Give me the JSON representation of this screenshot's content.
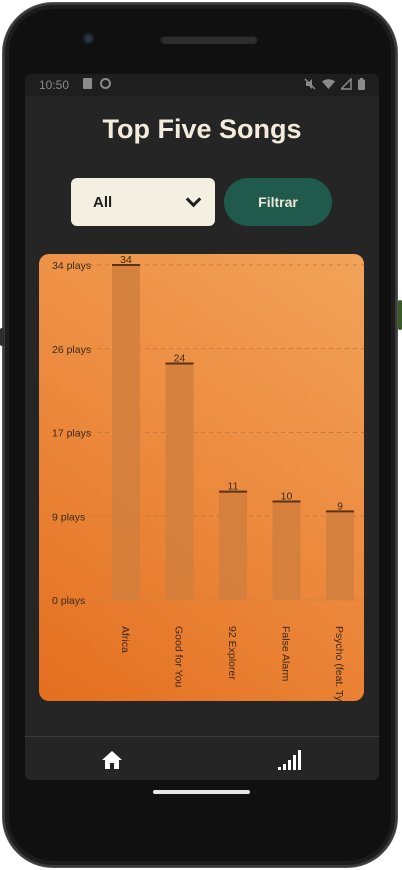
{
  "status_bar": {
    "time": "10:50",
    "left_icons": [
      "sd-card-icon",
      "sync-icon"
    ],
    "right_icons": [
      "mute-icon",
      "wifi-icon",
      "signal-icon",
      "battery-icon"
    ]
  },
  "header": {
    "title": "Top Five Songs"
  },
  "filter": {
    "selected": "All",
    "button_label": "Filtrar"
  },
  "chart_data": {
    "type": "bar",
    "categories": [
      "Africa",
      "Good for You",
      "92 Explorer",
      "False Alarm",
      "Psycho (feat. Ty"
    ],
    "values": [
      34,
      24,
      11,
      10,
      9
    ],
    "y_ticks": [
      "0 plays",
      "9 plays",
      "17 plays",
      "26 plays",
      "34 plays"
    ],
    "ylim": [
      0,
      34
    ],
    "grid": "horizontal-dashed",
    "colors": {
      "bar": "#d17f3d",
      "bar_top": "#5a3215",
      "label": "#3a2a1a",
      "grid": "#c77a3c"
    }
  },
  "bottom_nav": {
    "items": [
      {
        "name": "home",
        "icon": "home-icon"
      },
      {
        "name": "stats",
        "icon": "signal-bars-icon"
      }
    ]
  }
}
